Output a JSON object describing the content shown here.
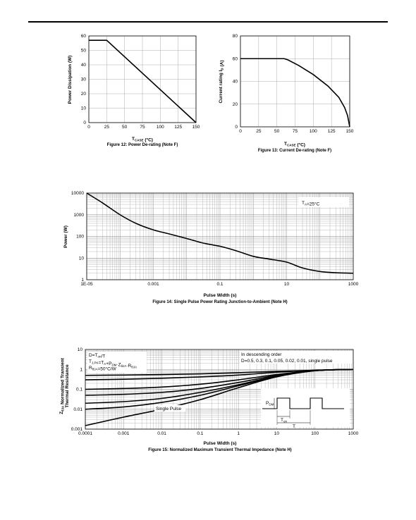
{
  "chart_data": [
    {
      "type": "line",
      "title": "Figure 12: Power De-rating (Note F)",
      "xlabel": "T_CASE (°C)",
      "ylabel": "Power Dissipation (W)",
      "xlim": [
        0,
        150
      ],
      "ylim": [
        0,
        60
      ],
      "xticks": [
        0,
        25,
        50,
        75,
        100,
        125,
        150
      ],
      "yticks": [
        0,
        10,
        20,
        30,
        40,
        50,
        60
      ],
      "x": [
        0,
        25,
        150
      ],
      "y": [
        57,
        57,
        0
      ],
      "grid": true
    },
    {
      "type": "line",
      "title": "Figure 13: Current De-rating (Note F)",
      "xlabel": "T_CASE (°C)",
      "ylabel": "Current rating I_D (A)",
      "xlim": [
        0,
        150
      ],
      "ylim": [
        0,
        80
      ],
      "xticks": [
        0,
        25,
        50,
        75,
        100,
        125,
        150
      ],
      "yticks": [
        0,
        20,
        40,
        60,
        80
      ],
      "x": [
        0,
        60,
        65,
        80,
        100,
        120,
        135,
        143,
        147,
        150
      ],
      "y": [
        60,
        60,
        59,
        54,
        46,
        36,
        26,
        17,
        10,
        0
      ],
      "grid": true
    },
    {
      "type": "line",
      "title": "Figure 14: Single Pulse Power Rating Junction-to-Ambient (Note H)",
      "xlabel": "Pulse Width (s)",
      "ylabel": "Power (W)",
      "xscale": "log",
      "yscale": "log",
      "xlim": [
        1e-05,
        1000
      ],
      "ylim": [
        1,
        10000
      ],
      "xticks": [
        "1E-05",
        "0.001",
        "0.1",
        "10",
        "1000"
      ],
      "yticks": [
        "1",
        "10",
        "100",
        "1000",
        "10000"
      ],
      "annotation": "T_A=25°C",
      "x": [
        1e-05,
        3e-05,
        0.0001,
        0.0003,
        0.001,
        0.003,
        0.01,
        0.03,
        0.1,
        0.3,
        1,
        3,
        10,
        30,
        100,
        300,
        1000
      ],
      "y": [
        10000,
        3500,
        1000,
        400,
        200,
        130,
        80,
        50,
        35,
        22,
        12,
        9,
        6.5,
        3.5,
        2.4,
        2.1,
        2.0
      ],
      "grid": true
    },
    {
      "type": "line",
      "title": "Figure 15: Normalized Maximum Transient Thermal Impedance (Note H)",
      "xlabel": "Pulse Width (s)",
      "ylabel": "Z_θJA Normalized Transient Thermal Resistance",
      "xscale": "log",
      "yscale": "log",
      "xlim": [
        0.0001,
        1000
      ],
      "ylim": [
        0.001,
        10
      ],
      "xticks": [
        "0.0001",
        "0.001",
        "0.01",
        "0.1",
        "1",
        "10",
        "100",
        "1000"
      ],
      "yticks": [
        "0.001",
        "0.01",
        "0.1",
        "1",
        "10"
      ],
      "notes": [
        "D=T_on/T",
        "T_J,PK=T_A+P_DM·Z_θJA·R_θJA",
        "R_θJA=50°C/W"
      ],
      "legend_note": [
        "In descending order",
        "D=0.5, 0.3, 0.1, 0.05, 0.02, 0.01, single pulse"
      ],
      "single_pulse_label": "Single Pulse",
      "inset_labels": [
        "P_DM",
        "T_on",
        "T"
      ],
      "x": [
        0.0001,
        0.001,
        0.01,
        0.1,
        1,
        10,
        100,
        1000
      ],
      "series": [
        {
          "name": "D=0.5",
          "values": [
            0.5,
            0.52,
            0.55,
            0.6,
            0.68,
            0.8,
            0.9,
            1.0
          ]
        },
        {
          "name": "D=0.3",
          "values": [
            0.3,
            0.32,
            0.36,
            0.42,
            0.52,
            0.72,
            0.9,
            1.0
          ]
        },
        {
          "name": "D=0.1",
          "values": [
            0.1,
            0.11,
            0.13,
            0.18,
            0.3,
            0.55,
            0.88,
            1.0
          ]
        },
        {
          "name": "D=0.05",
          "values": [
            0.05,
            0.056,
            0.07,
            0.11,
            0.22,
            0.5,
            0.87,
            1.0
          ]
        },
        {
          "name": "D=0.02",
          "values": [
            0.02,
            0.024,
            0.035,
            0.07,
            0.17,
            0.46,
            0.86,
            1.0
          ]
        },
        {
          "name": "D=0.01",
          "values": [
            0.01,
            0.013,
            0.022,
            0.05,
            0.15,
            0.44,
            0.86,
            1.0
          ]
        },
        {
          "name": "Single Pulse",
          "values": [
            0.0015,
            0.004,
            0.01,
            0.03,
            0.12,
            0.42,
            0.85,
            1.0
          ]
        }
      ],
      "grid": true
    }
  ]
}
